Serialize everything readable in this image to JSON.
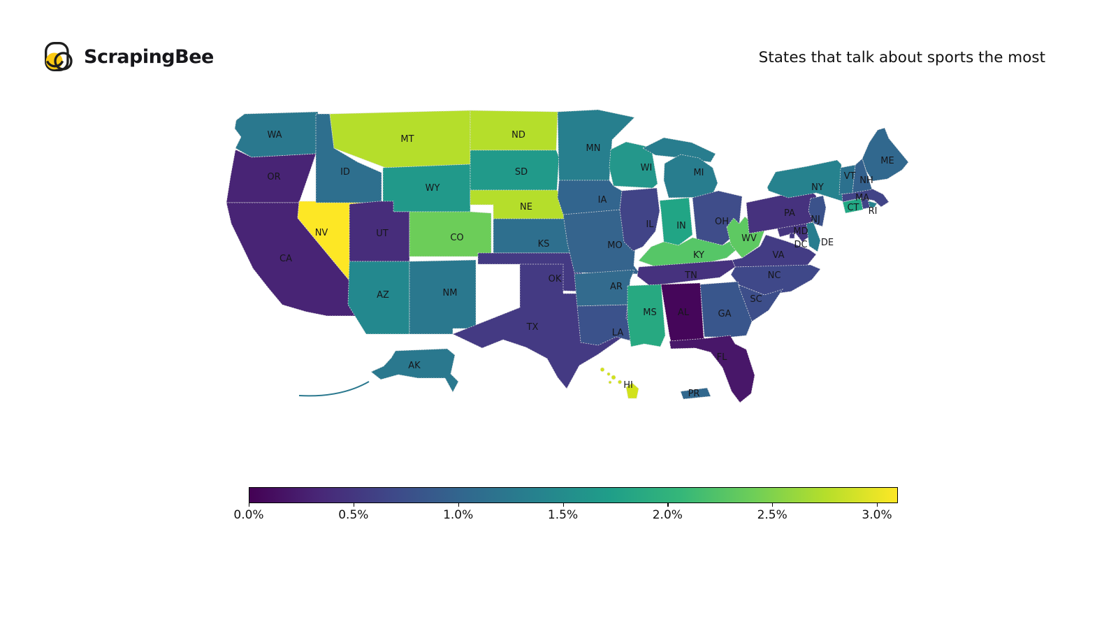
{
  "header": {
    "logo_text": "ScrapingBee",
    "logo_accent_color": "#fbc913",
    "title": "States that talk about sports the most"
  },
  "chart_data": {
    "type": "choropleth",
    "map_region": "United States states (incl. AK, HI, DC, PR)",
    "title": "States that talk about sports the most",
    "colormap": "viridis",
    "colormap_stops": [
      "#440154",
      "#482878",
      "#3e4989",
      "#31688e",
      "#26828e",
      "#1f9e89",
      "#35b779",
      "#6ece58",
      "#b5de2b",
      "#fde725"
    ],
    "colorbar": {
      "orientation": "horizontal",
      "unit": "%",
      "vmin": 0.0,
      "vmax": 3.1,
      "tick_values": [
        0.0,
        0.5,
        1.0,
        1.5,
        2.0,
        2.5,
        3.0
      ],
      "tick_labels": [
        "0.0%",
        "0.5%",
        "1.0%",
        "1.5%",
        "2.0%",
        "2.5%",
        "3.0%"
      ]
    },
    "encoding": "state fill color encodes percentage on the 0.0%-3.0% viridis colorbar; values below are estimates read from the colors",
    "states": [
      {
        "code": "WA",
        "color": "#2a788e",
        "value_pct_est": 1.4
      },
      {
        "code": "OR",
        "color": "#482475",
        "value_pct_est": 0.4
      },
      {
        "code": "CA",
        "color": "#482475",
        "value_pct_est": 0.4
      },
      {
        "code": "NV",
        "color": "#fde725",
        "value_pct_est": 3.1
      },
      {
        "code": "ID",
        "color": "#2e6f8e",
        "value_pct_est": 1.2
      },
      {
        "code": "MT",
        "color": "#b5de2b",
        "value_pct_est": 2.8
      },
      {
        "code": "WY",
        "color": "#21998a",
        "value_pct_est": 1.7
      },
      {
        "code": "UT",
        "color": "#472d7b",
        "value_pct_est": 0.5
      },
      {
        "code": "CO",
        "color": "#6ccd59",
        "value_pct_est": 2.5
      },
      {
        "code": "AZ",
        "color": "#23888e",
        "value_pct_est": 1.6
      },
      {
        "code": "NM",
        "color": "#2a788e",
        "value_pct_est": 1.4
      },
      {
        "code": "ND",
        "color": "#b5de2b",
        "value_pct_est": 2.8
      },
      {
        "code": "SD",
        "color": "#219a8a",
        "value_pct_est": 1.7
      },
      {
        "code": "NE",
        "color": "#b5de2b",
        "value_pct_est": 2.8
      },
      {
        "code": "KS",
        "color": "#2e6f8e",
        "value_pct_est": 1.2
      },
      {
        "code": "OK",
        "color": "#443a83",
        "value_pct_est": 0.6
      },
      {
        "code": "TX",
        "color": "#443a83",
        "value_pct_est": 0.6
      },
      {
        "code": "MN",
        "color": "#277f8e",
        "value_pct_est": 1.5
      },
      {
        "code": "IA",
        "color": "#32658e",
        "value_pct_est": 1.1
      },
      {
        "code": "MO",
        "color": "#35648d",
        "value_pct_est": 1.1
      },
      {
        "code": "AR",
        "color": "#336b8e",
        "value_pct_est": 1.2
      },
      {
        "code": "LA",
        "color": "#3b528b",
        "value_pct_est": 0.9
      },
      {
        "code": "WI",
        "color": "#24978b",
        "value_pct_est": 1.7
      },
      {
        "code": "IL",
        "color": "#414487",
        "value_pct_est": 0.7
      },
      {
        "code": "IN",
        "color": "#21a585",
        "value_pct_est": 2.0
      },
      {
        "code": "MI",
        "color": "#287d8e",
        "value_pct_est": 1.4
      },
      {
        "code": "OH",
        "color": "#3f4d8a",
        "value_pct_est": 0.8
      },
      {
        "code": "KY",
        "color": "#56c667",
        "value_pct_est": 2.4
      },
      {
        "code": "TN",
        "color": "#46327e",
        "value_pct_est": 0.5
      },
      {
        "code": "WV",
        "color": "#5ec962",
        "value_pct_est": 2.4
      },
      {
        "code": "VA",
        "color": "#433c84",
        "value_pct_est": 0.6
      },
      {
        "code": "MD",
        "color": "#45357f",
        "value_pct_est": 0.5
      },
      {
        "code": "DC",
        "color": "#443983",
        "value_pct_est": 0.6
      },
      {
        "code": "DE",
        "color": "#287d8e",
        "value_pct_est": 1.4
      },
      {
        "code": "NC",
        "color": "#3f4889",
        "value_pct_est": 0.8
      },
      {
        "code": "SC",
        "color": "#3d4e8a",
        "value_pct_est": 0.9
      },
      {
        "code": "GA",
        "color": "#39568c",
        "value_pct_est": 1.0
      },
      {
        "code": "AL",
        "color": "#45065a",
        "value_pct_est": 0.1
      },
      {
        "code": "MS",
        "color": "#27a981",
        "value_pct_est": 2.1
      },
      {
        "code": "FL",
        "color": "#481769",
        "value_pct_est": 0.3
      },
      {
        "code": "PA",
        "color": "#46327e",
        "value_pct_est": 0.5
      },
      {
        "code": "NY",
        "color": "#26828e",
        "value_pct_est": 1.5
      },
      {
        "code": "NJ",
        "color": "#3b528b",
        "value_pct_est": 0.9
      },
      {
        "code": "CT",
        "color": "#22a884",
        "value_pct_est": 2.0
      },
      {
        "code": "RI",
        "color": "#414487",
        "value_pct_est": 0.7
      },
      {
        "code": "MA",
        "color": "#414487",
        "value_pct_est": 0.7
      },
      {
        "code": "VT",
        "color": "#2c718e",
        "value_pct_est": 1.3
      },
      {
        "code": "NH",
        "color": "#34618d",
        "value_pct_est": 1.1
      },
      {
        "code": "ME",
        "color": "#31688e",
        "value_pct_est": 1.2
      },
      {
        "code": "AK",
        "color": "#2a788e",
        "value_pct_est": 1.4
      },
      {
        "code": "HI",
        "color": "#d2e21b",
        "value_pct_est": 2.9
      },
      {
        "code": "PR",
        "color": "#31688e",
        "value_pct_est": 1.2
      }
    ]
  }
}
